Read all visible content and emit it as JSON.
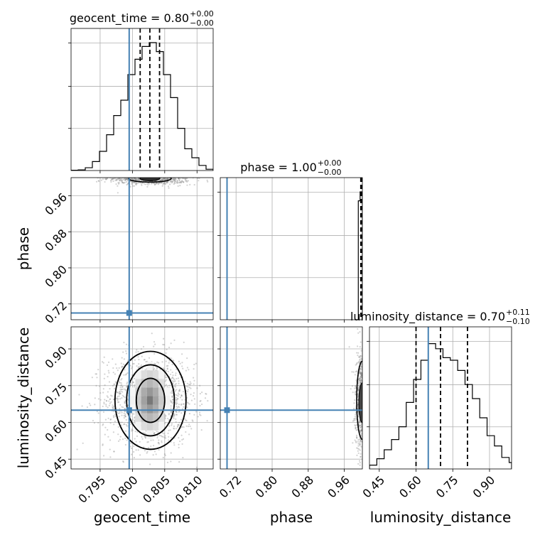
{
  "chart_data": {
    "type": "corner",
    "parameters": [
      "geocent_time",
      "phase",
      "luminosity_distance"
    ],
    "colors": {
      "truth": "#4682b4",
      "hist": "#000000",
      "grid": "#b0b0b0",
      "points": "#808080"
    },
    "grid": true,
    "truths": {
      "geocent_time": 0.7995,
      "phase": 0.7,
      "luminosity_distance": 0.65
    },
    "ranges": {
      "geocent_time": [
        0.7905,
        0.8125
      ],
      "phase": [
        0.685,
        1.0
      ],
      "luminosity_distance": [
        0.41,
        0.99
      ]
    },
    "ticks": {
      "geocent_time": [
        0.795,
        0.8,
        0.805,
        0.81
      ],
      "phase": [
        0.72,
        0.8,
        0.88,
        0.96
      ],
      "luminosity_distance": [
        0.45,
        0.6,
        0.75,
        0.9
      ]
    },
    "tick_labels": {
      "geocent_time": [
        "0.795",
        "0.800",
        "0.805",
        "0.810"
      ],
      "phase": [
        "0.72",
        "0.80",
        "0.88",
        "0.96"
      ],
      "luminosity_distance": [
        "0.45",
        "0.60",
        "0.75",
        "0.90"
      ]
    },
    "titles": [
      {
        "param": "geocent_time",
        "label": "geocent_time = 0.80",
        "plus": "+0.00",
        "minus": "−0.00"
      },
      {
        "param": "phase",
        "label": "phase = 1.00",
        "plus": "+0.00",
        "minus": "−0.00"
      },
      {
        "param": "luminosity_distance",
        "label": "luminosity_distance = 0.70",
        "plus": "+0.11",
        "minus": "−0.10"
      }
    ],
    "quantiles": {
      "geocent_time": [
        0.8012,
        0.8027,
        0.8042
      ],
      "phase": [
        0.9965,
        0.998,
        0.9995
      ],
      "luminosity_distance": [
        0.6,
        0.7,
        0.81
      ]
    },
    "histograms": {
      "geocent_time": {
        "edges": [
          0.7905,
          0.7916,
          0.7927,
          0.7938,
          0.7949,
          0.796,
          0.7971,
          0.7982,
          0.7993,
          0.8004,
          0.8015,
          0.8026,
          0.8037,
          0.8048,
          0.8059,
          0.807,
          0.8081,
          0.8092,
          0.8103,
          0.8114,
          0.8125
        ],
        "counts": [
          0.002,
          0.005,
          0.022,
          0.07,
          0.15,
          0.28,
          0.43,
          0.55,
          0.75,
          0.87,
          0.97,
          1.0,
          0.93,
          0.75,
          0.57,
          0.33,
          0.17,
          0.1,
          0.04,
          0.01
        ]
      },
      "phase": {
        "edges": [
          0.9825,
          0.987,
          0.991,
          0.995,
          1.0
        ],
        "counts": [
          0.0,
          0.0,
          0.93,
          1.0
        ]
      },
      "luminosity_distance": {
        "edges": [
          0.41,
          0.44,
          0.47,
          0.5,
          0.53,
          0.56,
          0.59,
          0.62,
          0.65,
          0.68,
          0.71,
          0.74,
          0.77,
          0.8,
          0.83,
          0.86,
          0.89,
          0.92,
          0.95,
          0.98,
          0.99
        ],
        "counts": [
          0.03,
          0.08,
          0.15,
          0.23,
          0.33,
          0.52,
          0.7,
          0.85,
          0.98,
          0.94,
          0.87,
          0.85,
          0.77,
          0.66,
          0.55,
          0.4,
          0.26,
          0.18,
          0.09,
          0.05
        ]
      }
    }
  }
}
